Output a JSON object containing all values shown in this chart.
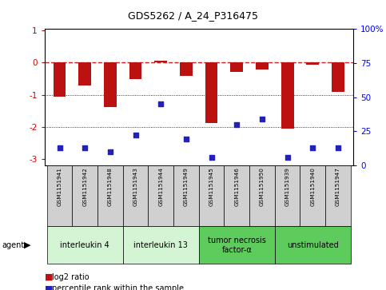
{
  "title": "GDS5262 / A_24_P316475",
  "samples": [
    "GSM1151941",
    "GSM1151942",
    "GSM1151948",
    "GSM1151943",
    "GSM1151944",
    "GSM1151949",
    "GSM1151945",
    "GSM1151946",
    "GSM1151950",
    "GSM1151939",
    "GSM1151940",
    "GSM1151947"
  ],
  "log2_ratio": [
    -1.05,
    -0.72,
    -1.38,
    -0.52,
    0.07,
    -0.42,
    -1.88,
    -0.28,
    -0.22,
    -2.05,
    -0.07,
    -0.92
  ],
  "percentile_rank": [
    13,
    13,
    10,
    22,
    45,
    19,
    6,
    30,
    34,
    6,
    13,
    13
  ],
  "groups": [
    {
      "label": "interleukin 4",
      "start": 0,
      "end": 3,
      "color": "#d4f5d4"
    },
    {
      "label": "interleukin 13",
      "start": 3,
      "end": 6,
      "color": "#d4f5d4"
    },
    {
      "label": "tumor necrosis\nfactor-α",
      "start": 6,
      "end": 9,
      "color": "#5dcc5d"
    },
    {
      "label": "unstimulated",
      "start": 9,
      "end": 12,
      "color": "#5dcc5d"
    }
  ],
  "bar_color": "#bb1111",
  "dot_color": "#2222bb",
  "ref_line_color": "#cc2222",
  "sample_box_color": "#d0d0d0",
  "plot_bg": "#ffffff",
  "fig_bg": "#ffffff",
  "ylim_left": [
    -3.2,
    1.05
  ],
  "ylim_right": [
    0,
    100
  ],
  "yticks_left": [
    1,
    0,
    -1,
    -2,
    -3
  ],
  "yticks_right": [
    0,
    25,
    50,
    75,
    100
  ],
  "bar_width": 0.5
}
